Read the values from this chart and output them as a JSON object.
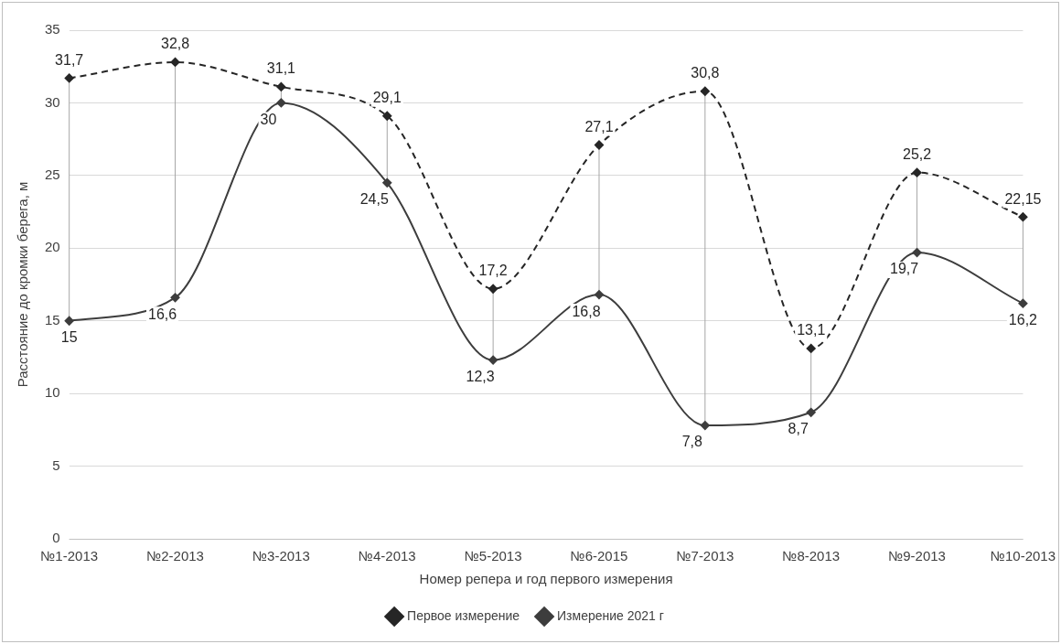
{
  "chart_data": {
    "type": "line",
    "xlabel": "Номер репера и год первого измерения",
    "ylabel": "Расстояние до кромки берега, м",
    "categories": [
      "№1-2013",
      "№2-2013",
      "№3-2013",
      "№4-2013",
      "№5-2013",
      "№6-2015",
      "№7-2013",
      "№8-2013",
      "№9-2013",
      "№10-2013"
    ],
    "series": [
      {
        "name": "Первое измерение",
        "color": "#262626",
        "line_style": "dashed",
        "values": [
          31.7,
          32.8,
          31.1,
          29.1,
          17.2,
          27.1,
          30.8,
          13.1,
          25.2,
          22.15
        ],
        "value_labels": [
          "31,7",
          "32,8",
          "31,1",
          "29,1",
          "17,2",
          "27,1",
          "30,8",
          "13,1",
          "25,2",
          "22,15"
        ]
      },
      {
        "name": "Измерение 2021 г",
        "color": "#3d3d3d",
        "line_style": "solid",
        "values": [
          15,
          16.6,
          30,
          24.5,
          12.3,
          16.8,
          7.8,
          8.7,
          19.7,
          16.2
        ],
        "value_labels": [
          "15",
          "16,6",
          "30",
          "24,5",
          "12,3",
          "16,8",
          "7,8",
          "8,7",
          "19,7",
          "16,2"
        ]
      }
    ],
    "ylim": [
      0,
      35
    ],
    "yticks": [
      0,
      5,
      10,
      15,
      20,
      25,
      30,
      35
    ],
    "grid": "y",
    "legend": "bottom",
    "marker": "diamond"
  }
}
